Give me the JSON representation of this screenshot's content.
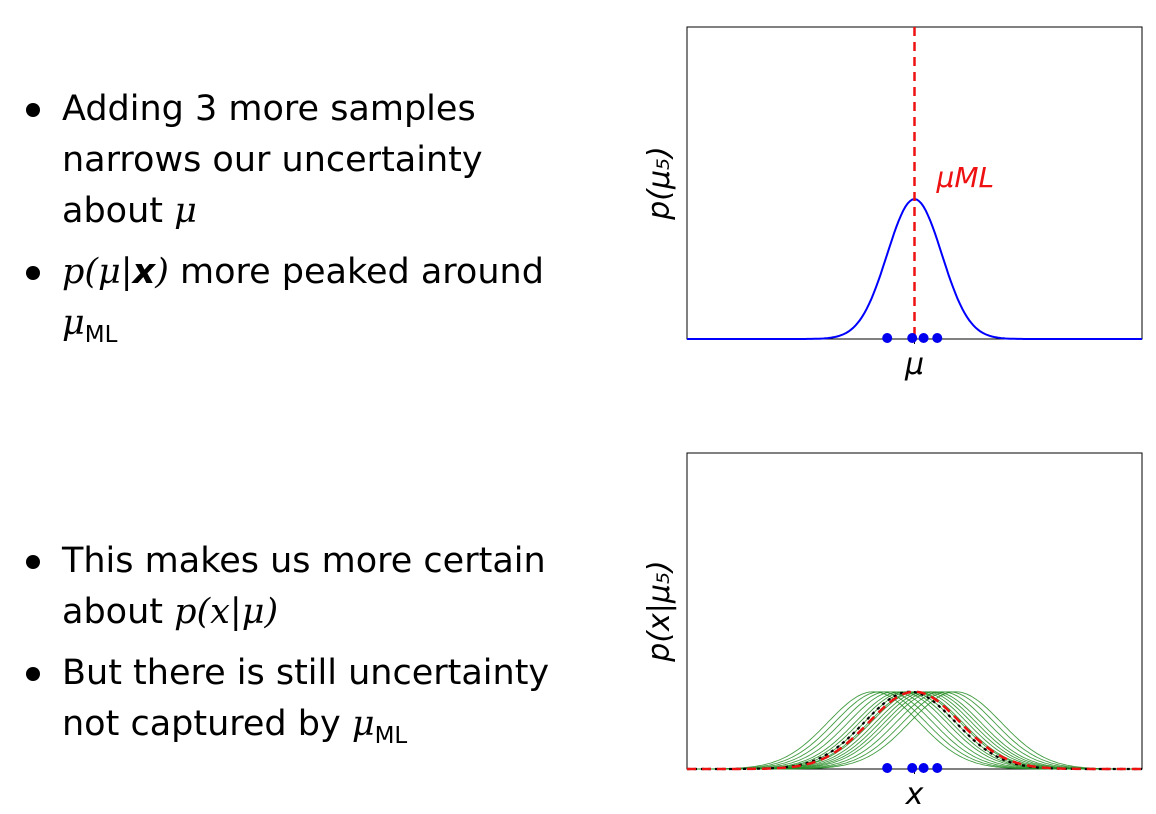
{
  "bullets_top": [
    {
      "pre": "Adding 3 more samples narrows our uncertainty about ",
      "math": "μ",
      "post": ""
    },
    {
      "pre": "",
      "math": "p(μ|",
      "bold": "x",
      "math2": ")",
      "post": " more peaked around ",
      "mu": "μ",
      "sub": "ML"
    }
  ],
  "bullets_bottom": [
    {
      "pre": "This makes us more certain about ",
      "math": "p(x|μ)"
    },
    {
      "pre": "But there is still uncertainty not captured by ",
      "mu": "μ",
      "sub": "ML"
    }
  ],
  "colors": {
    "posterior": "#0000ff",
    "ml": "#ee1111",
    "samples": "#0000ee",
    "green": "#228b22",
    "black": "#000000"
  },
  "chart_data": [
    {
      "type": "line",
      "ylabel": "p(μ₅)",
      "xlabel": "μ",
      "annotation": "μML",
      "xlim": [
        -5,
        5
      ],
      "ylim": [
        0,
        1.45
      ],
      "series": [
        {
          "kind": "posterior",
          "mean": 0.0,
          "sd": 0.6,
          "peak": 0.65
        }
      ],
      "ml_value": 0.0,
      "samples": [
        -0.6,
        -0.05,
        0.2,
        0.5
      ],
      "grid": false
    },
    {
      "type": "line",
      "ylabel": "p(x|μ₅)",
      "xlabel": "x",
      "xlim": [
        -5,
        5
      ],
      "ylim": [
        0,
        2.25
      ],
      "series": [
        {
          "kind": "ml",
          "mean": 0.0,
          "sd": 1.0,
          "peak": 0.55
        },
        {
          "kind": "mean_estimate",
          "mean": -0.1,
          "sd": 1.0,
          "peak": 0.55
        }
      ],
      "sample_means": [
        -0.9,
        -0.75,
        -0.6,
        -0.45,
        -0.3,
        -0.2,
        -0.1,
        0.0,
        0.05,
        0.15,
        0.25,
        0.35,
        0.45,
        0.6,
        0.75,
        0.9
      ],
      "samples": [
        -0.6,
        -0.05,
        0.2,
        0.5
      ],
      "grid": false
    }
  ]
}
